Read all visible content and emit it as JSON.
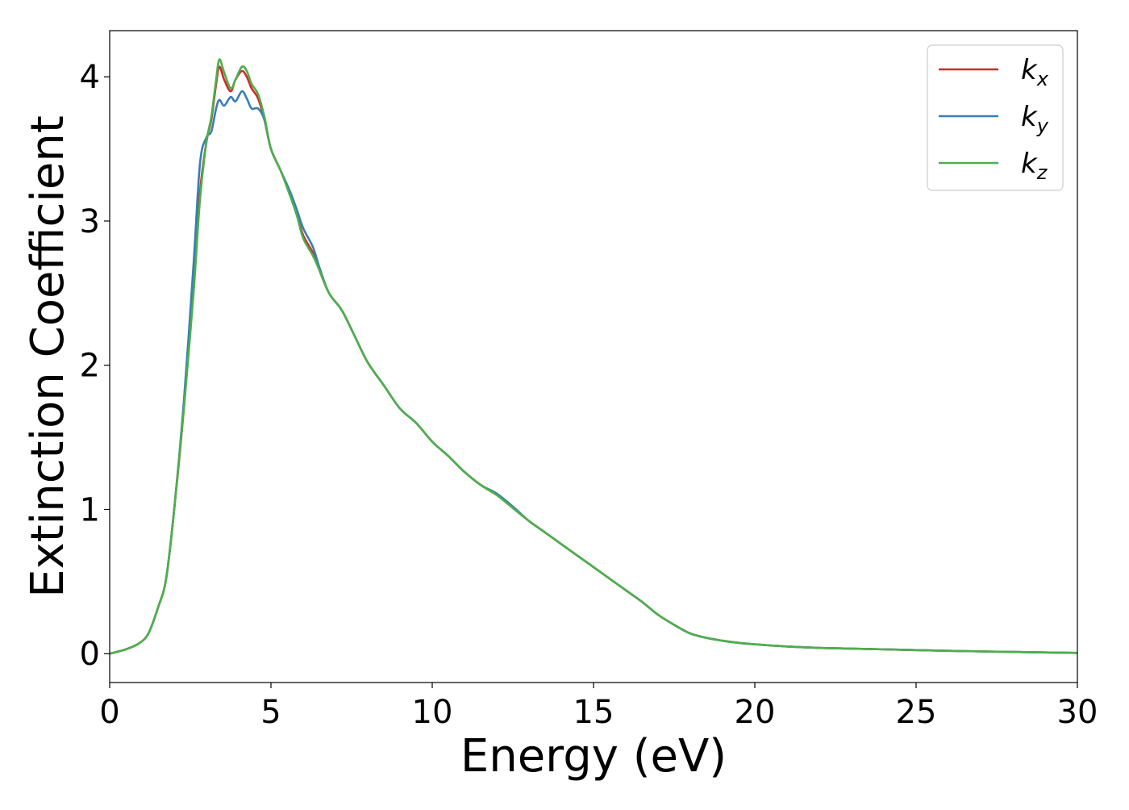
{
  "chart_data": {
    "type": "line",
    "title": "",
    "xlabel": "Energy (eV)",
    "ylabel": "Extinction Coefficient",
    "xlim": [
      0,
      30
    ],
    "ylim": [
      -0.2,
      4.32
    ],
    "xticks": [
      0,
      5,
      10,
      15,
      20,
      25,
      30
    ],
    "yticks": [
      0,
      1,
      2,
      3,
      4
    ],
    "grid": false,
    "legend_position": "top-right",
    "series": [
      {
        "name": "kx",
        "label_base": "k",
        "label_sub": "x",
        "color": "#d62728",
        "x": [
          0,
          0.5,
          0.9,
          1.2,
          1.5,
          1.75,
          2.0,
          2.3,
          2.6,
          2.8,
          3.0,
          3.15,
          3.3,
          3.4,
          3.55,
          3.75,
          3.9,
          4.1,
          4.25,
          4.4,
          4.6,
          4.8,
          5.0,
          5.3,
          5.6,
          5.8,
          6.0,
          6.3,
          6.5,
          6.8,
          7.2,
          7.6,
          8.0,
          8.5,
          9.0,
          9.5,
          10.0,
          10.5,
          11.0,
          11.5,
          12.0,
          12.5,
          13.0,
          13.5,
          14.0,
          14.5,
          15.0,
          15.5,
          16.0,
          16.5,
          17.0,
          17.5,
          18.0,
          18.5,
          19.0,
          19.5,
          20.0,
          21.0,
          22.0,
          23.0,
          24.0,
          25.0,
          26.0,
          28.0,
          30.0
        ],
        "y": [
          0.0,
          0.03,
          0.07,
          0.14,
          0.32,
          0.52,
          1.0,
          1.7,
          2.55,
          3.2,
          3.55,
          3.7,
          3.95,
          4.07,
          3.98,
          3.9,
          3.98,
          4.04,
          4.0,
          3.92,
          3.85,
          3.7,
          3.5,
          3.35,
          3.18,
          3.05,
          2.9,
          2.78,
          2.66,
          2.5,
          2.38,
          2.2,
          2.02,
          1.86,
          1.7,
          1.6,
          1.47,
          1.37,
          1.26,
          1.17,
          1.1,
          1.01,
          0.92,
          0.84,
          0.76,
          0.68,
          0.6,
          0.52,
          0.44,
          0.36,
          0.27,
          0.2,
          0.14,
          0.11,
          0.09,
          0.075,
          0.065,
          0.05,
          0.04,
          0.035,
          0.03,
          0.025,
          0.02,
          0.012,
          0.005
        ]
      },
      {
        "name": "ky",
        "label_base": "k",
        "label_sub": "y",
        "color": "#377eb8",
        "x": [
          0,
          0.5,
          0.9,
          1.2,
          1.5,
          1.75,
          2.0,
          2.3,
          2.6,
          2.8,
          3.0,
          3.15,
          3.3,
          3.4,
          3.55,
          3.75,
          3.9,
          4.1,
          4.25,
          4.4,
          4.6,
          4.8,
          5.0,
          5.3,
          5.6,
          5.8,
          6.0,
          6.3,
          6.5,
          6.8,
          7.2,
          7.6,
          8.0,
          8.5,
          9.0,
          9.5,
          10.0,
          10.5,
          11.0,
          11.5,
          12.0,
          12.5,
          13.0,
          13.5,
          14.0,
          14.5,
          15.0,
          15.5,
          16.0,
          16.5,
          17.0,
          17.5,
          18.0,
          18.5,
          19.0,
          19.5,
          20.0,
          21.0,
          22.0,
          23.0,
          24.0,
          25.0,
          26.0,
          28.0,
          30.0
        ],
        "y": [
          0.0,
          0.03,
          0.07,
          0.14,
          0.32,
          0.52,
          1.0,
          1.75,
          2.7,
          3.4,
          3.58,
          3.62,
          3.78,
          3.84,
          3.8,
          3.86,
          3.83,
          3.9,
          3.85,
          3.78,
          3.78,
          3.7,
          3.5,
          3.35,
          3.2,
          3.08,
          2.95,
          2.82,
          2.68,
          2.5,
          2.38,
          2.2,
          2.02,
          1.86,
          1.7,
          1.6,
          1.47,
          1.37,
          1.26,
          1.17,
          1.11,
          1.02,
          0.92,
          0.84,
          0.76,
          0.68,
          0.6,
          0.52,
          0.44,
          0.36,
          0.27,
          0.2,
          0.14,
          0.11,
          0.09,
          0.075,
          0.065,
          0.05,
          0.04,
          0.035,
          0.03,
          0.025,
          0.02,
          0.012,
          0.005
        ]
      },
      {
        "name": "kz",
        "label_base": "k",
        "label_sub": "z",
        "color": "#4daf4a",
        "x": [
          0,
          0.5,
          0.9,
          1.2,
          1.5,
          1.75,
          2.0,
          2.3,
          2.6,
          2.8,
          3.0,
          3.15,
          3.3,
          3.4,
          3.55,
          3.75,
          3.9,
          4.1,
          4.25,
          4.4,
          4.6,
          4.8,
          5.0,
          5.3,
          5.6,
          5.8,
          6.0,
          6.3,
          6.5,
          6.8,
          7.2,
          7.6,
          8.0,
          8.5,
          9.0,
          9.5,
          10.0,
          10.5,
          11.0,
          11.5,
          12.0,
          12.5,
          13.0,
          13.5,
          14.0,
          14.5,
          15.0,
          15.5,
          16.0,
          16.5,
          17.0,
          17.5,
          18.0,
          18.5,
          19.0,
          19.5,
          20.0,
          21.0,
          22.0,
          23.0,
          24.0,
          25.0,
          26.0,
          28.0,
          30.0
        ],
        "y": [
          0.0,
          0.03,
          0.07,
          0.14,
          0.32,
          0.52,
          1.0,
          1.7,
          2.5,
          3.15,
          3.55,
          3.72,
          3.98,
          4.12,
          4.03,
          3.92,
          3.98,
          4.07,
          4.04,
          3.95,
          3.88,
          3.72,
          3.5,
          3.35,
          3.17,
          3.04,
          2.88,
          2.76,
          2.66,
          2.5,
          2.38,
          2.2,
          2.02,
          1.86,
          1.7,
          1.6,
          1.47,
          1.37,
          1.26,
          1.17,
          1.1,
          1.01,
          0.92,
          0.84,
          0.76,
          0.68,
          0.6,
          0.52,
          0.44,
          0.36,
          0.27,
          0.2,
          0.14,
          0.11,
          0.09,
          0.075,
          0.065,
          0.05,
          0.04,
          0.035,
          0.03,
          0.025,
          0.02,
          0.012,
          0.005
        ]
      }
    ]
  }
}
